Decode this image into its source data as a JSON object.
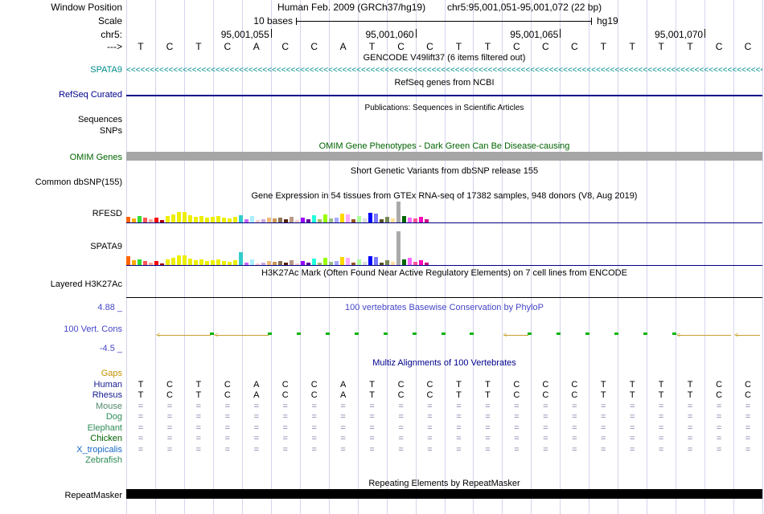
{
  "header": {
    "window_position_label": "Window Position",
    "assembly": "Human Feb. 2009 (GRCh37/hg19)",
    "position": "chr5:95,001,051-95,001,072 (22 bp)",
    "scale_label": "Scale",
    "scale_value": "10 bases",
    "genome": "hg19",
    "chrom_label": "chr5:",
    "strand_label": "--->",
    "ruler_ticks": [
      "95,001,055",
      "95,001,060",
      "95,001,065",
      "95,001,070"
    ]
  },
  "sequence": [
    "T",
    "C",
    "T",
    "C",
    "A",
    "C",
    "C",
    "A",
    "T",
    "C",
    "C",
    "T",
    "T",
    "C",
    "C",
    "C",
    "T",
    "T",
    "T",
    "T",
    "C",
    "C"
  ],
  "gencode": {
    "title": "GENCODE V49lift37 (6 items filtered out)",
    "gene_label": "SPATA9",
    "color": "#008B8B",
    "strand_glyph": "<"
  },
  "refseq": {
    "title": "RefSeq genes from NCBI",
    "label": "RefSeq Curated",
    "color": "#00008B"
  },
  "publications": {
    "title": "Publications: Sequences in Scientific Articles",
    "sequences_label": "Sequences",
    "snps_label": "SNPs"
  },
  "omim": {
    "title": "OMIM Gene Phenotypes - Dark Green Can Be Disease-causing",
    "label": "OMIM Genes",
    "color": "#006400",
    "bar_color": "#A6A6A6"
  },
  "dbsnp": {
    "title": "Short Genetic Variants from dbSNP release 155",
    "label": "Common dbSNP(155)"
  },
  "gtex": {
    "title": "Gene Expression in 54 tissues from GTEx RNA-seq of 17382 samples, 948 donors (V8, Aug 2019)",
    "axis_color": "#000080",
    "palette": [
      "#FF6600",
      "#FFAA00",
      "#33DD33",
      "#FF5555",
      "#FFAA99",
      "#FF0000",
      "#AA0000",
      "#EEEE00",
      "#EEEE00",
      "#EEEE00",
      "#EEEE00",
      "#EEEE00",
      "#EEEE00",
      "#EEEE00",
      "#EEEE00",
      "#EEEE00",
      "#EEEE00",
      "#EEEE00",
      "#EEEE00",
      "#EEEE00",
      "#33CCCC",
      "#CC66FF",
      "#AAEEFF",
      "#FFCCCC",
      "#CCAADD",
      "#EEBB77",
      "#CC9955",
      "#8B7355",
      "#552200",
      "#BB9988",
      "#FFCCCC",
      "#9900FF",
      "#660099",
      "#22FFDD",
      "#AABB66",
      "#99FF00",
      "#99BB88",
      "#AAAAFF",
      "#FFD700",
      "#FFAAFF",
      "#995522",
      "#AAFF99",
      "#DDDDDD",
      "#0000FF",
      "#7777FF",
      "#555522",
      "#778855",
      "#FFDD99",
      "#AAAAAA",
      "#006600",
      "#FF66FF",
      "#FF5599",
      "#FF00BB",
      "#CC0088"
    ],
    "tracks": [
      {
        "label": "RFESD",
        "heights": [
          7,
          5,
          8,
          6,
          4,
          6,
          3,
          8,
          10,
          13,
          13,
          9,
          7,
          8,
          6,
          7,
          8,
          6,
          5,
          7,
          9,
          4,
          8,
          3,
          4,
          6,
          5,
          6,
          4,
          7,
          3,
          6,
          4,
          9,
          4,
          10,
          5,
          6,
          11,
          10,
          4,
          8,
          5,
          12,
          11,
          4,
          7,
          5,
          26,
          8,
          6,
          5,
          7,
          4
        ]
      },
      {
        "label": "SPATA9",
        "heights": [
          11,
          6,
          7,
          5,
          3,
          5,
          2,
          7,
          9,
          12,
          12,
          8,
          6,
          7,
          5,
          6,
          7,
          5,
          4,
          6,
          16,
          3,
          7,
          2,
          3,
          5,
          4,
          5,
          3,
          6,
          2,
          5,
          3,
          8,
          3,
          9,
          4,
          5,
          10,
          9,
          3,
          7,
          4,
          11,
          10,
          3,
          6,
          4,
          42,
          7,
          9,
          4,
          6,
          3
        ]
      }
    ]
  },
  "encode": {
    "title": "H3K27Ac Mark (Often Found Near Active Regulatory Elements) on 7 cell lines from ENCODE",
    "label": "Layered H3K27Ac"
  },
  "phylop": {
    "title": "100 vertebrates Basewise Conservation by PhyloP",
    "label": "100 Vert. Cons",
    "max_label": "4.88 _",
    "min_label": "-4.5 _",
    "color": "#4646C8",
    "tick_color": "#00B400",
    "gap_color": "#C8A02C",
    "tick_columns": [
      2,
      4,
      5,
      6,
      7,
      8,
      9,
      10,
      11,
      13,
      14,
      15,
      16,
      17,
      18
    ],
    "gap_spans": [
      [
        1,
        2
      ],
      [
        3,
        4
      ],
      [
        13,
        13
      ],
      [
        19,
        20
      ],
      [
        21,
        21
      ]
    ]
  },
  "multiz": {
    "title": "Multiz Alignments of 100 Vertebrates",
    "title_color": "#00008B",
    "unaligned_glyph": "=",
    "unaligned_color": "#7E7EA8",
    "rows": [
      {
        "label": "Gaps",
        "color": "#C49102",
        "type": "empty"
      },
      {
        "label": "Human",
        "color": "#151B8D",
        "type": "sequence"
      },
      {
        "label": "Rhesus",
        "color": "#151B8D",
        "type": "sequence"
      },
      {
        "label": "Mouse",
        "color": "#50876C",
        "type": "unaligned"
      },
      {
        "label": "Dog",
        "color": "#2E8B57",
        "type": "unaligned"
      },
      {
        "label": "Elephant",
        "color": "#2E8B57",
        "type": "unaligned"
      },
      {
        "label": "Chicken",
        "color": "#006400",
        "type": "unaligned"
      },
      {
        "label": "X_tropicalis",
        "color": "#1569C7",
        "type": "unaligned"
      },
      {
        "label": "Zebrafish",
        "color": "#2E8B57",
        "type": "empty"
      }
    ]
  },
  "repeatmasker": {
    "title": "Repeating Elements by RepeatMasker",
    "label": "RepeatMasker",
    "bar_color": "#000000"
  }
}
